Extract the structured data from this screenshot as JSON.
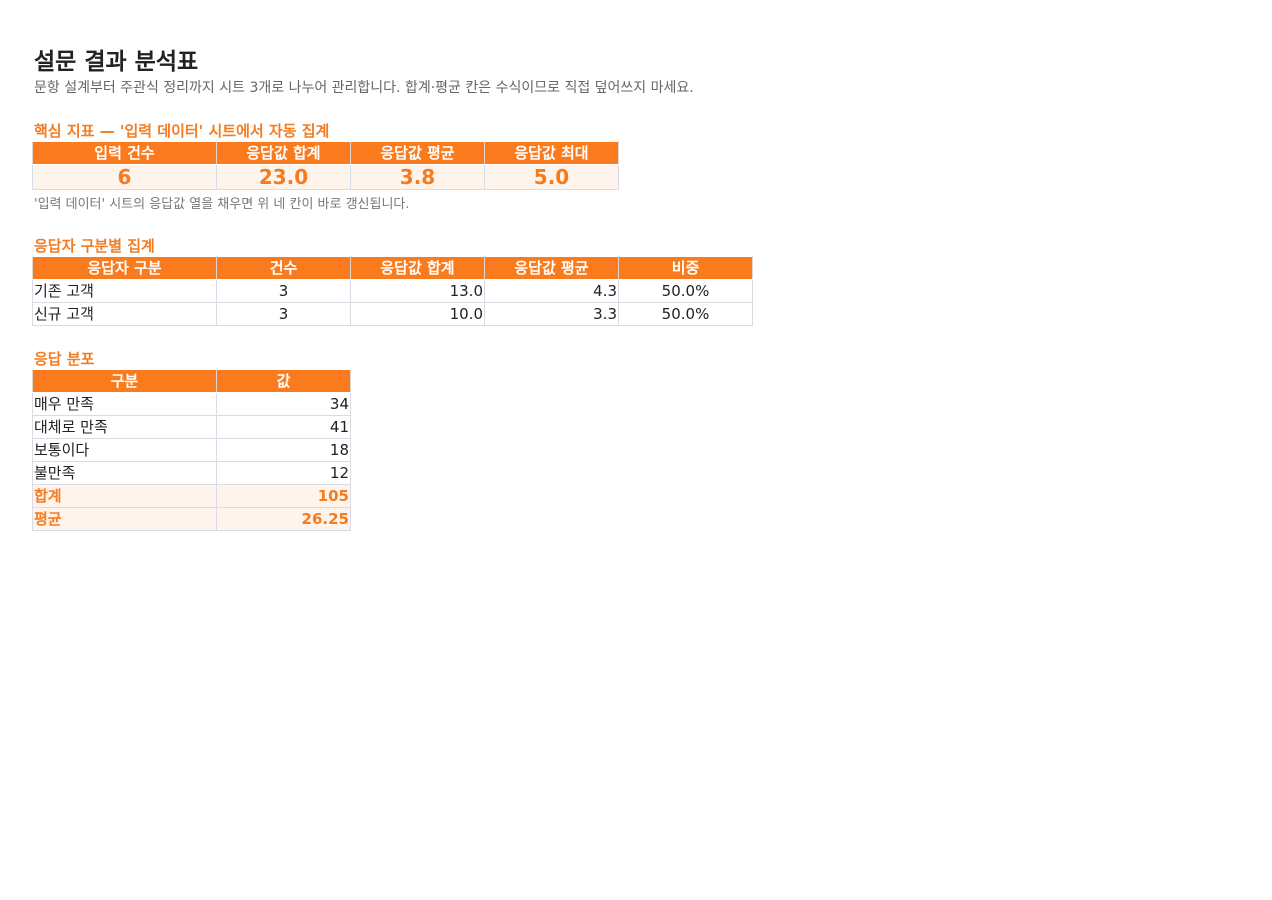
{
  "title": "설문 결과 분석표",
  "subtitle": "문항 설계부터 주관식 정리까지 시트 3개로 나누어 관리합니다. 합계·평균 칸은 수식이므로 직접 덮어쓰지 마세요.",
  "kpi": {
    "heading": "핵심 지표 — '입력 데이터' 시트에서 자동 집계",
    "headers": [
      "입력 건수",
      "응답값 합계",
      "응답값 평균",
      "응답값 최대"
    ],
    "values": [
      "6",
      "23.0",
      "3.8",
      "5.0"
    ],
    "note": "'입력 데이터' 시트의 응답값 열을 채우면 위 네 칸이 바로 갱신됩니다."
  },
  "segment": {
    "heading": "응답자 구분별 집계",
    "headers": [
      "응답자 구분",
      "건수",
      "응답값 합계",
      "응답값 평균",
      "비중"
    ],
    "rows": [
      [
        "기존 고객",
        "3",
        "13.0",
        "4.3",
        "50.0%"
      ],
      [
        "신규 고객",
        "3",
        "10.0",
        "3.3",
        "50.0%"
      ]
    ]
  },
  "distribution": {
    "heading": "응답 분포",
    "headers": [
      "구분",
      "값"
    ],
    "rows": [
      [
        "매우 만족",
        "34"
      ],
      [
        "대체로 만족",
        "41"
      ],
      [
        "보통이다",
        "18"
      ],
      [
        "불만족",
        "12"
      ]
    ],
    "summary": [
      [
        "합계",
        "105"
      ],
      [
        "평균",
        "26.25"
      ]
    ]
  }
}
